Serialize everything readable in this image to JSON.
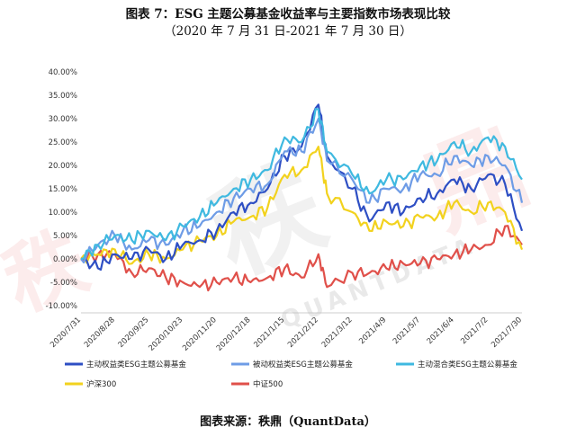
{
  "figure": {
    "title": "图表 7：ESG 主题公募基金收益率与主要指数市场表现比较",
    "subtitle": "（2020 年 7 月 31 日-2021 年 7 月 30 日）",
    "source": "图表来源：秩鼎（QuantData）",
    "watermark_text": [
      "秩",
      "鼎",
      "QUANTDATA"
    ]
  },
  "chart_data": {
    "type": "line",
    "title": "图表 7：ESG 主题公募基金收益率与主要指数市场表现比较",
    "subtitle": "（2020 年 7 月 31 日-2021 年 7 月 30 日）",
    "ylim": [
      -10,
      40
    ],
    "y_ticks": [
      "40.00%",
      "35.00%",
      "30.00%",
      "25.00%",
      "20.00%",
      "15.00%",
      "10.00%",
      "5.00%",
      "0.00%",
      "-5.00%",
      "-10.00%"
    ],
    "y_tick_values": [
      40,
      35,
      30,
      25,
      20,
      15,
      10,
      5,
      0,
      -5,
      -10
    ],
    "x_ticks": [
      "2020/7/31",
      "2020/8/28",
      "2020/9/25",
      "2020/10/23",
      "2020/11/20",
      "2020/12/18",
      "2021/1/15",
      "2021/2/12",
      "2021/3/12",
      "2021/4/9",
      "2021/5/7",
      "2021/6/4",
      "2021/7/2",
      "2021/7/30"
    ],
    "grid": false,
    "legend_position": "bottom",
    "x_dates": [
      "2020/7/31",
      "2020/8/14",
      "2020/8/28",
      "2020/9/11",
      "2020/9/25",
      "2020/10/9",
      "2020/10/23",
      "2020/11/6",
      "2020/11/20",
      "2020/12/4",
      "2020/12/18",
      "2021/1/1",
      "2021/1/15",
      "2021/1/29",
      "2021/2/12",
      "2021/2/19",
      "2021/3/12",
      "2021/3/26",
      "2021/4/9",
      "2021/4/23",
      "2021/5/7",
      "2021/5/21",
      "2021/6/4",
      "2021/6/18",
      "2021/7/2",
      "2021/7/16",
      "2021/7/30"
    ],
    "series": [
      {
        "name": "主动权益类ESG主题公募基金",
        "color": "#2e4fc4",
        "values": [
          0,
          -2,
          1,
          0,
          2,
          0,
          3,
          4,
          6,
          10,
          12,
          15,
          22,
          24,
          33,
          22,
          15,
          8,
          12,
          10,
          13,
          14,
          17,
          15,
          18,
          16,
          6
        ]
      },
      {
        "name": "被动权益类ESG主题公募基金",
        "color": "#6e9ce6",
        "values": [
          0,
          3,
          5,
          2,
          4,
          3,
          6,
          7,
          10,
          13,
          15,
          16,
          23,
          23,
          30,
          21,
          17,
          12,
          15,
          15,
          18,
          18,
          22,
          20,
          22,
          20,
          12
        ]
      },
      {
        "name": "主动混合类ESG主题公募基金",
        "color": "#3fb9e0",
        "values": [
          0,
          3,
          5,
          4,
          6,
          4,
          7,
          9,
          12,
          15,
          17,
          19,
          26,
          25,
          32,
          23,
          18,
          14,
          17,
          17,
          20,
          21,
          25,
          23,
          26,
          24,
          17
        ]
      },
      {
        "name": "沪深300",
        "color": "#f2d21e",
        "values": [
          0,
          1,
          2,
          -1,
          1,
          0,
          2,
          4,
          5,
          8,
          9,
          11,
          18,
          19,
          24,
          14,
          10,
          6,
          8,
          7,
          9,
          9,
          12,
          10,
          12,
          10,
          2
        ]
      },
      {
        "name": "中证500",
        "color": "#e0504a",
        "values": [
          0,
          1,
          1,
          -3,
          -2,
          -4,
          -5,
          -6,
          -5,
          -4,
          -5,
          -4,
          -2,
          -4,
          1,
          -6,
          -3,
          -3,
          -2,
          -1,
          -1,
          0,
          1,
          2,
          3,
          7,
          3
        ]
      }
    ]
  }
}
